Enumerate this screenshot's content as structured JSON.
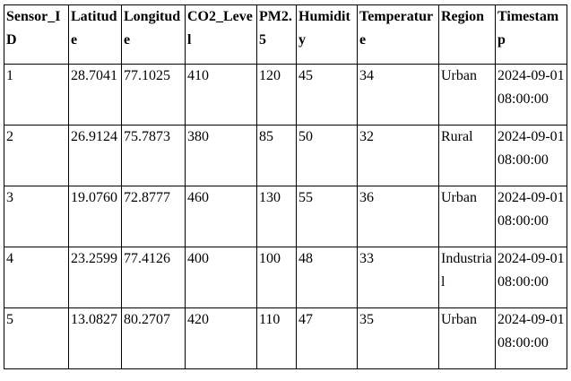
{
  "page": {
    "background_color": "#ffffff",
    "border_color": "#000000",
    "text_color": "#000000"
  },
  "table": {
    "columns": [
      "Sensor_ID",
      "Latitude",
      "Longitude",
      "CO2_Level",
      "PM2.5",
      "Humidity",
      "Temperature",
      "Region",
      "Timestamp"
    ],
    "rows": [
      [
        "1",
        "28.7041",
        "77.1025",
        "410",
        "120",
        "45",
        "34",
        "Urban",
        "2024-09-01 08:00:00"
      ],
      [
        "2",
        "26.9124",
        "75.7873",
        "380",
        "85",
        "50",
        "32",
        "Rural",
        "2024-09-01 08:00:00"
      ],
      [
        "3",
        "19.0760",
        "72.8777",
        "460",
        "130",
        "55",
        "36",
        "Urban",
        "2024-09-01 08:00:00"
      ],
      [
        "4",
        "23.2599",
        "77.4126",
        "400",
        "100",
        "48",
        "33",
        "Industrial",
        "2024-09-01 08:00:00"
      ],
      [
        "5",
        "13.0827",
        "80.2707",
        "420",
        "110",
        "47",
        "35",
        "Urban",
        "2024-09-01 08:00:00"
      ]
    ]
  },
  "chart_data": {
    "type": "table",
    "title": "",
    "columns": [
      "Sensor_ID",
      "Latitude",
      "Longitude",
      "CO2_Level",
      "PM2.5",
      "Humidity",
      "Temperature",
      "Region",
      "Timestamp"
    ],
    "rows": [
      [
        "1",
        "28.7041",
        "77.1025",
        "410",
        "120",
        "45",
        "34",
        "Urban",
        "2024-09-01 08:00:00"
      ],
      [
        "2",
        "26.9124",
        "75.7873",
        "380",
        "85",
        "50",
        "32",
        "Rural",
        "2024-09-01 08:00:00"
      ],
      [
        "3",
        "19.0760",
        "72.8777",
        "460",
        "130",
        "55",
        "36",
        "Urban",
        "2024-09-01 08:00:00"
      ],
      [
        "4",
        "23.2599",
        "77.4126",
        "400",
        "100",
        "48",
        "33",
        "Industrial",
        "2024-09-01 08:00:00"
      ],
      [
        "5",
        "13.0827",
        "80.2707",
        "420",
        "110",
        "47",
        "35",
        "Urban",
        "2024-09-01 08:00:00"
      ]
    ]
  }
}
